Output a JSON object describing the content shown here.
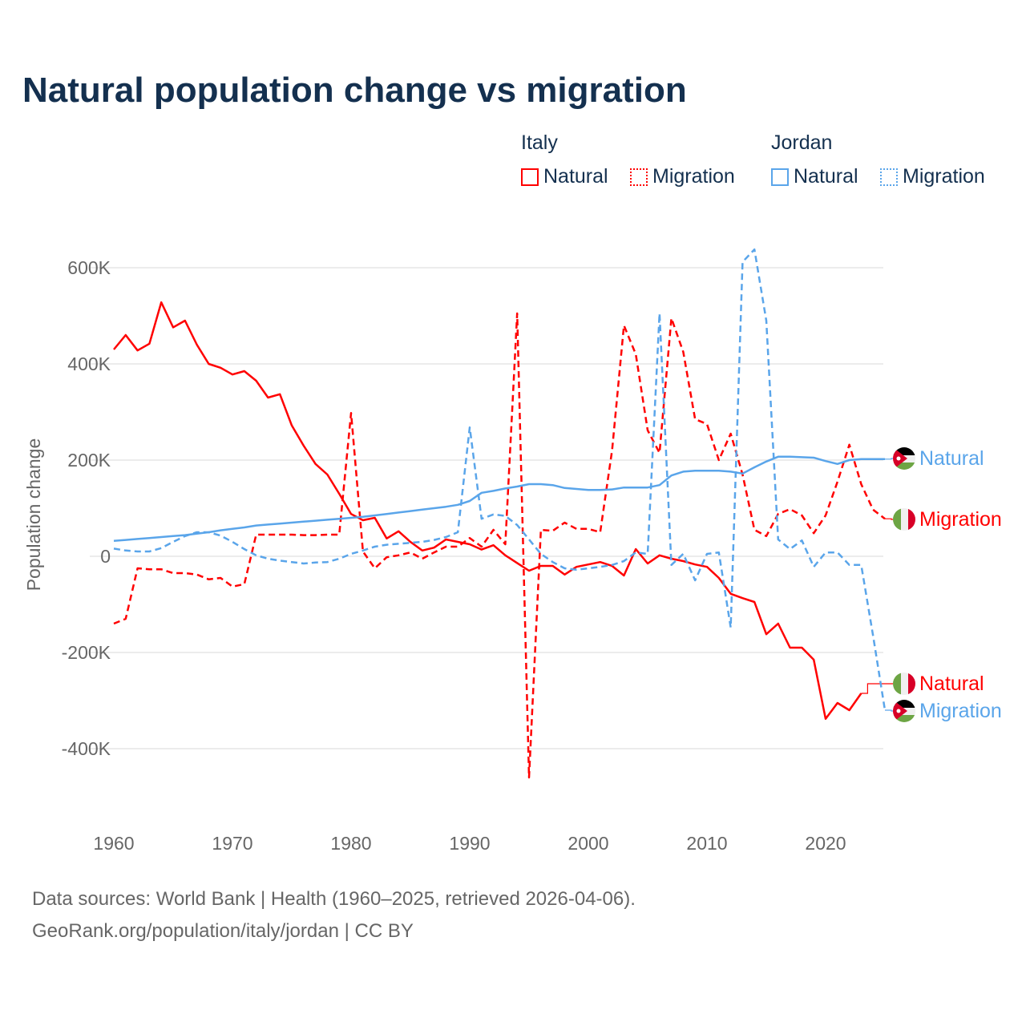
{
  "title": "Natural population change vs migration",
  "legend": {
    "groups": [
      {
        "name": "Italy",
        "items": [
          {
            "label": "Natural",
            "style": "solid",
            "color": "#ff0000"
          },
          {
            "label": "Migration",
            "style": "dotted",
            "color": "#ff0000"
          }
        ]
      },
      {
        "name": "Jordan",
        "items": [
          {
            "label": "Natural",
            "style": "solid",
            "color": "#5aa5ea"
          },
          {
            "label": "Migration",
            "style": "dotted",
            "color": "#5aa5ea"
          }
        ]
      }
    ]
  },
  "footer": {
    "line1": "Data sources: World Bank | Health (1960–2025, retrieved 2026-04-06).",
    "line2": "GeoRank.org/population/italy/jordan | CC BY"
  },
  "chart_data": {
    "type": "line",
    "title": "Natural population change vs migration",
    "ylabel": "Population change",
    "xlabel": "",
    "xlim": [
      1960,
      2025
    ],
    "ylim": [
      -450,
      640
    ],
    "yticks": [
      {
        "v": 600,
        "label": "600K"
      },
      {
        "v": 400,
        "label": "400K"
      },
      {
        "v": 200,
        "label": "200K"
      },
      {
        "v": 0,
        "label": "0"
      },
      {
        "v": -200,
        "label": "-200K"
      },
      {
        "v": -400,
        "label": "-400K"
      }
    ],
    "xticks": [
      {
        "v": 1960,
        "label": "1960"
      },
      {
        "v": 1970,
        "label": "1970"
      },
      {
        "v": 1980,
        "label": "1980"
      },
      {
        "v": 1990,
        "label": "1990"
      },
      {
        "v": 2000,
        "label": "2000"
      },
      {
        "v": 2010,
        "label": "2010"
      },
      {
        "v": 2020,
        "label": "2020"
      }
    ],
    "grid": true,
    "units": "thousands",
    "series": [
      {
        "name": "Italy Natural",
        "end_label": "Natural",
        "country": "italy",
        "color": "#ff0000",
        "dashed": false,
        "start": 1960,
        "values": [
          430,
          460,
          428,
          442,
          528,
          476,
          490,
          440,
          400,
          392,
          378,
          385,
          365,
          330,
          337,
          272,
          230,
          192,
          170,
          130,
          88,
          75,
          80,
          37,
          52,
          30,
          12,
          18,
          35,
          30,
          25,
          14,
          23,
          2,
          -14,
          -30,
          -20,
          -20,
          -38,
          -22,
          -17,
          -12,
          -20,
          -40,
          15,
          -15,
          2,
          -5,
          -10,
          -17,
          -22,
          -45,
          -78,
          -87,
          -95,
          -162,
          -140,
          -190,
          -190,
          -215,
          -338,
          -305,
          -320,
          -285
        ]
      },
      {
        "name": "Italy Migration",
        "end_label": "Migration",
        "country": "italy",
        "color": "#ff0000",
        "dashed": true,
        "start": 1960,
        "values": [
          -140,
          -130,
          -25,
          -27,
          -27,
          -35,
          -35,
          -38,
          -48,
          -45,
          -63,
          -58,
          45,
          45,
          45,
          45,
          44,
          44,
          45,
          45,
          298,
          10,
          -25,
          -2,
          2,
          8,
          -5,
          8,
          20,
          20,
          38,
          20,
          55,
          25,
          505,
          -460,
          55,
          53,
          70,
          57,
          57,
          50,
          220,
          480,
          420,
          262,
          215,
          495,
          425,
          285,
          275,
          200,
          255,
          170,
          55,
          42,
          88,
          98,
          85,
          48,
          85,
          155,
          232,
          150,
          97,
          78
        ]
      },
      {
        "name": "Jordan Natural",
        "end_label": "Natural",
        "country": "jordan",
        "color": "#5aa5ea",
        "dashed": false,
        "start": 1960,
        "values": [
          32,
          34,
          36,
          38,
          40,
          42,
          44,
          47,
          50,
          54,
          57,
          60,
          64,
          66,
          68,
          70,
          72,
          74,
          76,
          78,
          80,
          82,
          85,
          88,
          91,
          94,
          97,
          100,
          103,
          107,
          115,
          132,
          136,
          141,
          145,
          150,
          150,
          148,
          142,
          140,
          138,
          138,
          139,
          143,
          143,
          143,
          148,
          168,
          176,
          178,
          178,
          178,
          176,
          172,
          185,
          197,
          207,
          207,
          206,
          205,
          198,
          192,
          200,
          202,
          202,
          202
        ]
      },
      {
        "name": "Jordan Migration",
        "end_label": "Migration",
        "country": "jordan",
        "color": "#5aa5ea",
        "dashed": true,
        "start": 1960,
        "values": [
          16,
          12,
          10,
          10,
          17,
          30,
          42,
          50,
          50,
          43,
          30,
          15,
          2,
          -5,
          -9,
          -12,
          -15,
          -13,
          -12,
          -5,
          5,
          12,
          20,
          24,
          26,
          28,
          30,
          34,
          40,
          50,
          268,
          78,
          87,
          84,
          65,
          35,
          5,
          -12,
          -25,
          -28,
          -25,
          -22,
          -18,
          -10,
          8,
          5,
          505,
          -18,
          5,
          -50,
          5,
          8,
          -148,
          612,
          638,
          490,
          35,
          15,
          33,
          -22,
          8,
          8,
          -18,
          -18,
          -165,
          -320
        ]
      }
    ]
  }
}
